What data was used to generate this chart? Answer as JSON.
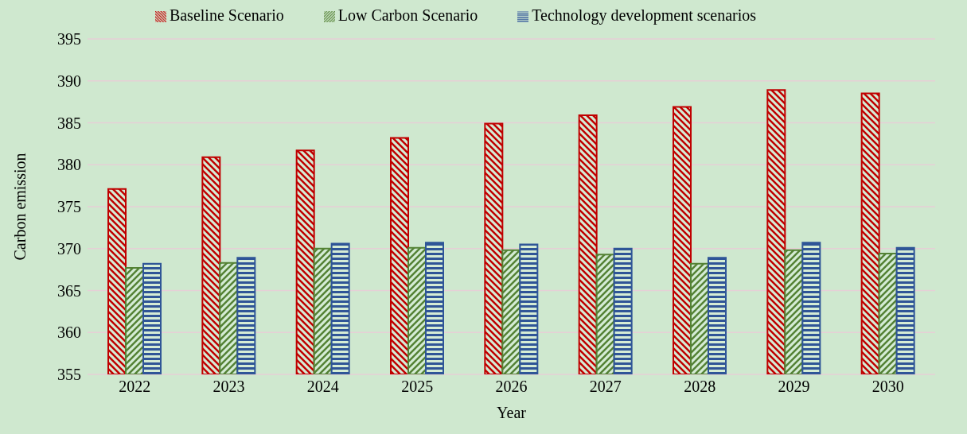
{
  "chart_data": {
    "type": "bar",
    "xlabel": "Year",
    "ylabel": "Carbon emission",
    "categories": [
      "2022",
      "2023",
      "2024",
      "2025",
      "2026",
      "2027",
      "2028",
      "2029",
      "2030"
    ],
    "series": [
      {
        "name": "Baseline Scenario",
        "color": "#c00000",
        "values": [
          377.1,
          380.9,
          381.7,
          383.2,
          384.9,
          385.9,
          386.9,
          388.9,
          388.5
        ]
      },
      {
        "name": "Low Carbon Scenario",
        "color": "#548235",
        "values": [
          367.7,
          368.3,
          370.0,
          370.1,
          369.8,
          369.3,
          368.2,
          369.8,
          369.4
        ]
      },
      {
        "name": "Technology development scenarios",
        "color": "#2f5597",
        "values": [
          368.2,
          368.9,
          370.6,
          370.7,
          370.5,
          370.0,
          368.9,
          370.7,
          370.1
        ]
      }
    ],
    "ylim": [
      355,
      395
    ],
    "yticks": [
      355,
      360,
      365,
      370,
      375,
      380,
      385,
      390,
      395
    ],
    "grid": "y",
    "legend": "top"
  }
}
